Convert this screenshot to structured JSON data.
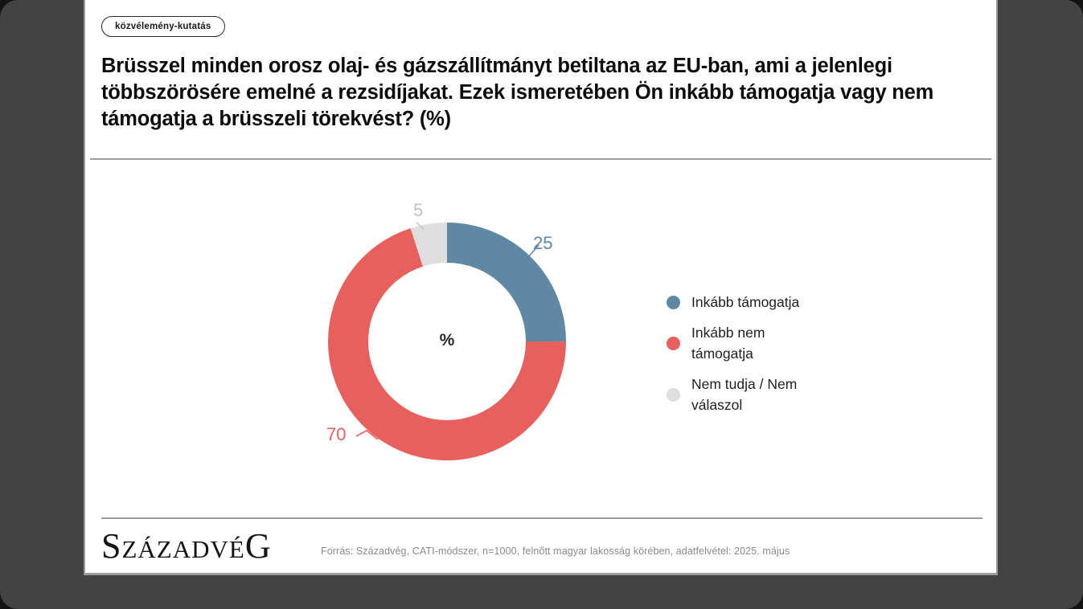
{
  "badge": {
    "label": "közvélemény-kutatás"
  },
  "title": "Brüsszel minden orosz olaj- és gázszállítmányt betiltana az EU-ban, ami a jelenlegi többszörösére emelné a rezsidíjakat. Ezek ismeretében Ön inkább támogatja vagy nem támogatja a brüsszeli törekvést? (%)",
  "chart_data": {
    "type": "pie",
    "subtype": "donut",
    "unit": "%",
    "center_label": "%",
    "start_angle": "top",
    "direction": "clockwise",
    "legend_position": "right",
    "total": 100,
    "series": [
      {
        "name": "Inkább támogatja",
        "value": 25,
        "color": "#5f88a4",
        "label_color": "#5f88a4"
      },
      {
        "name": "Inkább nem támogatja",
        "value": 70,
        "color": "#e8605e",
        "label_color": "#e8605e"
      },
      {
        "name": "Nem tudja / Nem válaszol",
        "value": 5,
        "color": "#dedede",
        "label_color": "#c2c2c2"
      }
    ]
  },
  "footer": {
    "logo": "SzázadvéG",
    "source": "Forrás: Századvég, CATI-módszer, n=1000, felnőtt magyar lakosság körében, adatfelvétel: 2025. május"
  },
  "colors": {
    "frame_outer": "#141414",
    "frame_panel": "#434343",
    "card": "#ffffff",
    "divider": "#9e9e9e"
  }
}
